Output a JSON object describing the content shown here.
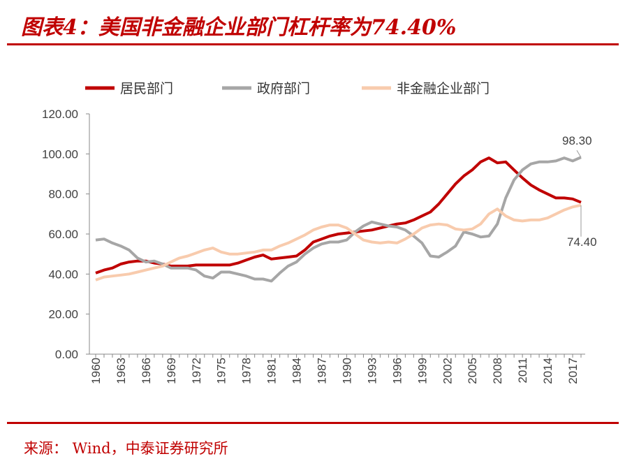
{
  "title": "图表4：美国非金融企业部门杠杆率为74.40%",
  "source": "来源：  Wind，中泰证券研究所",
  "chart_data": {
    "type": "line",
    "title": "",
    "xlabel": "",
    "ylabel": "",
    "ylim": [
      0,
      120
    ],
    "yticks": [
      "0.00",
      "20.00",
      "40.00",
      "60.00",
      "80.00",
      "100.00",
      "120.00"
    ],
    "x": [
      1960,
      1961,
      1962,
      1963,
      1964,
      1965,
      1966,
      1967,
      1968,
      1969,
      1970,
      1971,
      1972,
      1973,
      1974,
      1975,
      1976,
      1977,
      1978,
      1979,
      1980,
      1981,
      1982,
      1983,
      1984,
      1985,
      1986,
      1987,
      1988,
      1989,
      1990,
      1991,
      1992,
      1993,
      1994,
      1995,
      1996,
      1997,
      1998,
      1999,
      2000,
      2001,
      2002,
      2003,
      2004,
      2005,
      2006,
      2007,
      2008,
      2009,
      2010,
      2011,
      2012,
      2013,
      2014,
      2015,
      2016,
      2017,
      2018
    ],
    "xticks": [
      "1960",
      "1963",
      "1966",
      "1969",
      "1972",
      "1975",
      "1978",
      "1981",
      "1984",
      "1987",
      "1990",
      "1993",
      "1996",
      "1999",
      "2002",
      "2005",
      "2008",
      "2011",
      "2014",
      "2017"
    ],
    "grid": false,
    "legend": "top",
    "series": [
      {
        "name": "居民部门",
        "color": "#c00000",
        "values": [
          40.5,
          42,
          43,
          45,
          46,
          46.5,
          46.5,
          45.5,
          45,
          44,
          44,
          44,
          44.5,
          44.5,
          44.5,
          44.5,
          44.5,
          45.5,
          47,
          48.5,
          49.5,
          47.5,
          48,
          48.5,
          49,
          52,
          56,
          57.5,
          59,
          60,
          60.5,
          61,
          61.5,
          62,
          63,
          64,
          65,
          65.5,
          67,
          69,
          71,
          75,
          80,
          85,
          89,
          92,
          96,
          98,
          95.5,
          96,
          92,
          88,
          84.5,
          82,
          80,
          78,
          78,
          77.5,
          75.8
        ]
      },
      {
        "name": "政府部门",
        "color": "#a6a6a6",
        "values": [
          57,
          57.5,
          55.5,
          54,
          52,
          48,
          46,
          46.5,
          45,
          43,
          43,
          43,
          42,
          39,
          38,
          41,
          41,
          40,
          39,
          37.5,
          37.5,
          36.5,
          40.5,
          44,
          46,
          50,
          53,
          55,
          56,
          56,
          57,
          61,
          64,
          66,
          65,
          64,
          63.5,
          62,
          59,
          55.5,
          49,
          48.5,
          51,
          54,
          61,
          60,
          58.5,
          59,
          65,
          78,
          87,
          92,
          95,
          96,
          96,
          96.5,
          98,
          96.5,
          98.3
        ]
      },
      {
        "name": "非金融企业部门",
        "color": "#f8cbad",
        "values": [
          37,
          38.5,
          39,
          39.5,
          40,
          41,
          42,
          43,
          44,
          46,
          48,
          49,
          50.5,
          52,
          53,
          51,
          50,
          50,
          50.5,
          51,
          52,
          52,
          54,
          55.5,
          57.5,
          59.5,
          62,
          63.5,
          64.5,
          64.5,
          63,
          60,
          57,
          56,
          55.5,
          56,
          55.5,
          57.5,
          60,
          63,
          64.5,
          65,
          64.5,
          62.5,
          62,
          62.5,
          65,
          70,
          72.5,
          69,
          67,
          66.5,
          67,
          67,
          68,
          70,
          72,
          73.5,
          74.4
        ]
      }
    ],
    "annotations": [
      "98.30",
      "74.40"
    ]
  }
}
